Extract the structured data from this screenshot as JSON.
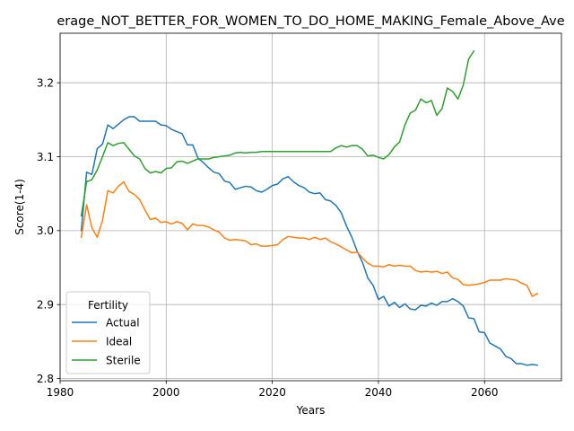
{
  "chart_data": {
    "type": "line",
    "title": "erage_NOT_BETTER_FOR_WOMEN_TO_DO_HOME_MAKING_Female_Above_Ave",
    "xlabel": "Years",
    "ylabel": "Score(1-4)",
    "xlim": [
      1980,
      2074.5
    ],
    "ylim": [
      2.797,
      3.267
    ],
    "xticks": [
      1980,
      2000,
      2020,
      2040,
      2060
    ],
    "yticks": [
      2.8,
      2.9,
      3.0,
      3.1,
      3.2
    ],
    "xtick_labels": [
      "1980",
      "2000",
      "2020",
      "2040",
      "2060"
    ],
    "ytick_labels": [
      "2.8",
      "2.9",
      "3.0",
      "3.1",
      "3.2"
    ],
    "grid": true,
    "legend": {
      "title": "Fertility",
      "placement": "lower-left"
    },
    "series": [
      {
        "name": "Actual",
        "color": "#1f77b4",
        "x": [
          1984,
          1985,
          1986,
          1987,
          1988,
          1989,
          1990,
          1991,
          1992,
          1993,
          1994,
          1995,
          1996,
          1997,
          1998,
          1999,
          2000,
          2001,
          2002,
          2003,
          2004,
          2005,
          2006,
          2007,
          2008,
          2009,
          2010,
          2011,
          2012,
          2013,
          2014,
          2015,
          2016,
          2017,
          2018,
          2019,
          2020,
          2021,
          2022,
          2023,
          2024,
          2025,
          2026,
          2027,
          2028,
          2029,
          2030,
          2031,
          2032,
          2033,
          2034,
          2035,
          2036,
          2037,
          2038,
          2039,
          2040,
          2041,
          2042,
          2043,
          2044,
          2045,
          2046,
          2047,
          2048,
          2049,
          2050,
          2051,
          2052,
          2053,
          2054,
          2055,
          2056,
          2057,
          2058,
          2059,
          2060,
          2061,
          2062,
          2063,
          2064,
          2065,
          2066,
          2067,
          2068,
          2069,
          2070
        ],
        "y": [
          3.0,
          3.079,
          3.076,
          3.111,
          3.117,
          3.143,
          3.138,
          3.144,
          3.15,
          3.154,
          3.154,
          3.148,
          3.148,
          3.148,
          3.148,
          3.143,
          3.142,
          3.137,
          3.134,
          3.131,
          3.116,
          3.116,
          3.098,
          3.092,
          3.085,
          3.079,
          3.077,
          3.067,
          3.065,
          3.056,
          3.058,
          3.06,
          3.059,
          3.054,
          3.052,
          3.056,
          3.061,
          3.063,
          3.07,
          3.073,
          3.066,
          3.061,
          3.058,
          3.052,
          3.05,
          3.051,
          3.042,
          3.04,
          3.034,
          3.024,
          3.006,
          2.991,
          2.972,
          2.957,
          2.936,
          2.926,
          2.907,
          2.911,
          2.898,
          2.903,
          2.896,
          2.901,
          2.894,
          2.893,
          2.899,
          2.898,
          2.902,
          2.899,
          2.904,
          2.904,
          2.908,
          2.904,
          2.898,
          2.882,
          2.881,
          2.863,
          2.862,
          2.848,
          2.844,
          2.84,
          2.83,
          2.827,
          2.82,
          2.82,
          2.818,
          2.819,
          2.818
        ]
      },
      {
        "name": "Ideal",
        "color": "#ff7f0e",
        "x": [
          1984,
          1985,
          1986,
          1987,
          1988,
          1989,
          1990,
          1991,
          1992,
          1993,
          1994,
          1995,
          1996,
          1997,
          1998,
          1999,
          2000,
          2001,
          2002,
          2003,
          2004,
          2005,
          2006,
          2007,
          2008,
          2009,
          2010,
          2011,
          2012,
          2013,
          2014,
          2015,
          2016,
          2017,
          2018,
          2019,
          2020,
          2021,
          2022,
          2023,
          2024,
          2025,
          2026,
          2027,
          2028,
          2029,
          2030,
          2031,
          2032,
          2033,
          2034,
          2035,
          2036,
          2037,
          2038,
          2039,
          2040,
          2041,
          2042,
          2043,
          2044,
          2045,
          2046,
          2047,
          2048,
          2049,
          2050,
          2051,
          2052,
          2053,
          2054,
          2055,
          2056,
          2057,
          2058,
          2059,
          2060,
          2061,
          2062,
          2063,
          2064,
          2065,
          2066,
          2067,
          2068,
          2069,
          2070
        ],
        "y": [
          2.991,
          3.035,
          3.004,
          2.991,
          3.014,
          3.054,
          3.051,
          3.06,
          3.066,
          3.053,
          3.049,
          3.042,
          3.028,
          3.015,
          3.017,
          3.011,
          3.012,
          3.009,
          3.012,
          3.01,
          3.001,
          3.009,
          3.007,
          3.007,
          3.005,
          3.001,
          2.998,
          2.99,
          2.987,
          2.988,
          2.987,
          2.986,
          2.981,
          2.982,
          2.979,
          2.979,
          2.98,
          2.981,
          2.988,
          2.992,
          2.991,
          2.99,
          2.99,
          2.988,
          2.991,
          2.988,
          2.99,
          2.985,
          2.982,
          2.978,
          2.974,
          2.97,
          2.971,
          2.963,
          2.956,
          2.952,
          2.952,
          2.951,
          2.954,
          2.952,
          2.953,
          2.952,
          2.952,
          2.946,
          2.944,
          2.945,
          2.944,
          2.945,
          2.942,
          2.944,
          2.936,
          2.934,
          2.927,
          2.926,
          2.927,
          2.928,
          2.93,
          2.933,
          2.933,
          2.933,
          2.935,
          2.934,
          2.933,
          2.929,
          2.926,
          2.911,
          2.915
        ]
      },
      {
        "name": "Sterile",
        "color": "#2ca02c",
        "x": [
          1984,
          1985,
          1986,
          1987,
          1988,
          1989,
          1990,
          1991,
          1992,
          1993,
          1994,
          1995,
          1996,
          1997,
          1998,
          1999,
          2000,
          2001,
          2002,
          2003,
          2004,
          2005,
          2006,
          2007,
          2008,
          2009,
          2010,
          2011,
          2012,
          2013,
          2014,
          2015,
          2016,
          2017,
          2018,
          2019,
          2020,
          2021,
          2022,
          2023,
          2024,
          2025,
          2026,
          2027,
          2028,
          2029,
          2030,
          2031,
          2032,
          2033,
          2034,
          2035,
          2036,
          2037,
          2038,
          2039,
          2040,
          2041,
          2042,
          2043,
          2044,
          2045,
          2046,
          2047,
          2048,
          2049,
          2050,
          2051,
          2052,
          2053,
          2054,
          2055,
          2056,
          2057,
          2058
        ],
        "y": [
          3.02,
          3.066,
          3.069,
          3.082,
          3.1,
          3.119,
          3.115,
          3.118,
          3.119,
          3.11,
          3.101,
          3.097,
          3.084,
          3.078,
          3.08,
          3.078,
          3.084,
          3.085,
          3.093,
          3.094,
          3.091,
          3.094,
          3.097,
          3.097,
          3.097,
          3.099,
          3.1,
          3.101,
          3.102,
          3.105,
          3.106,
          3.105,
          3.106,
          3.106,
          3.107,
          3.107,
          3.107,
          3.107,
          3.107,
          3.107,
          3.107,
          3.107,
          3.107,
          3.107,
          3.107,
          3.107,
          3.107,
          3.107,
          3.112,
          3.115,
          3.113,
          3.115,
          3.115,
          3.11,
          3.101,
          3.102,
          3.099,
          3.097,
          3.103,
          3.113,
          3.12,
          3.143,
          3.159,
          3.163,
          3.178,
          3.173,
          3.176,
          3.156,
          3.165,
          3.193,
          3.188,
          3.178,
          3.197,
          3.232,
          3.243
        ]
      }
    ]
  }
}
